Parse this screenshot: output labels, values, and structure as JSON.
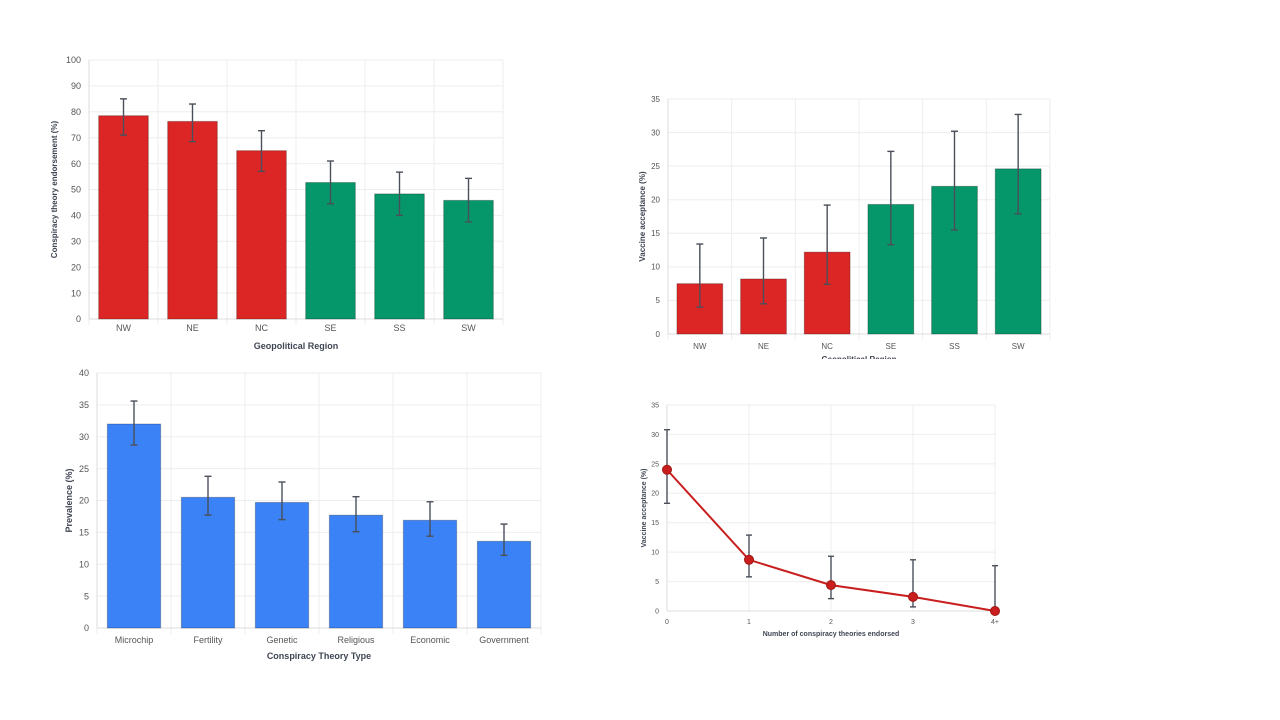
{
  "chart_data": [
    {
      "type": "bar",
      "id": "endorsement-by-region",
      "categories": [
        "NW",
        "NE",
        "NC",
        "SE",
        "SS",
        "SW"
      ],
      "values": [
        78.5,
        76.3,
        65.0,
        52.7,
        48.3,
        45.8
      ],
      "error_low": [
        71.0,
        68.5,
        57.0,
        44.5,
        40.0,
        37.5
      ],
      "error_high": [
        85.0,
        83.0,
        72.7,
        61.0,
        56.7,
        54.3
      ],
      "colors": [
        "#dc2626",
        "#dc2626",
        "#dc2626",
        "#059669",
        "#059669",
        "#059669"
      ],
      "xlabel": "Geopolitical Region",
      "ylabel": "Conspiracy theory endorsement (%)",
      "ylim": [
        0,
        100
      ],
      "yticks": [
        "0",
        "10",
        "20",
        "30",
        "40",
        "50",
        "60",
        "70",
        "80",
        "90",
        "100"
      ],
      "grid": true
    },
    {
      "type": "bar",
      "id": "vaccine-acceptance-by-region",
      "categories": [
        "NW",
        "NE",
        "NC",
        "SE",
        "SS",
        "SW"
      ],
      "values": [
        7.5,
        8.2,
        12.2,
        19.3,
        22.0,
        24.6
      ],
      "error_low": [
        4.0,
        4.5,
        7.4,
        13.3,
        15.5,
        17.9
      ],
      "error_high": [
        13.4,
        14.3,
        19.2,
        27.2,
        30.2,
        32.7
      ],
      "colors": [
        "#dc2626",
        "#dc2626",
        "#dc2626",
        "#059669",
        "#059669",
        "#059669"
      ],
      "xlabel": "Geopolitical Region",
      "ylabel": "Vaccine acceptance (%)",
      "ylim": [
        0,
        35
      ],
      "yticks": [
        "0",
        "5",
        "10",
        "15",
        "20",
        "25",
        "30",
        "35"
      ],
      "grid": true
    },
    {
      "type": "bar",
      "id": "prevalence-by-type",
      "categories": [
        "Microchip",
        "Fertility",
        "Genetic",
        "Religious",
        "Economic",
        "Government"
      ],
      "values": [
        32.0,
        20.5,
        19.7,
        17.7,
        16.9,
        13.6
      ],
      "error_low": [
        28.7,
        17.7,
        17.0,
        15.1,
        14.4,
        11.4
      ],
      "error_high": [
        35.6,
        23.8,
        22.9,
        20.6,
        19.8,
        16.3
      ],
      "colors": [
        "#3b82f6",
        "#3b82f6",
        "#3b82f6",
        "#3b82f6",
        "#3b82f6",
        "#3b82f6"
      ],
      "xlabel": "Conspiracy Theory Type",
      "ylabel": "Prevalence (%)",
      "ylim": [
        0,
        40
      ],
      "yticks": [
        "0",
        "5",
        "10",
        "15",
        "20",
        "25",
        "30",
        "35",
        "40"
      ],
      "grid": true
    },
    {
      "type": "line",
      "id": "acceptance-by-count",
      "categories": [
        "0",
        "1",
        "2",
        "3",
        "4+"
      ],
      "values": [
        24.0,
        8.7,
        4.4,
        2.4,
        0.0
      ],
      "error_low": [
        18.3,
        5.8,
        2.1,
        0.7,
        0.0
      ],
      "error_high": [
        30.8,
        12.9,
        9.3,
        8.7,
        7.7
      ],
      "colors": [
        "#c81e1e"
      ],
      "xlabel": "Number of conspiracy theories endorsed",
      "ylabel": "Vaccine acceptance (%)",
      "ylim": [
        0,
        35
      ],
      "yticks": [
        "0",
        "5",
        "10",
        "15",
        "20",
        "25",
        "30",
        "35"
      ],
      "grid": true
    }
  ]
}
